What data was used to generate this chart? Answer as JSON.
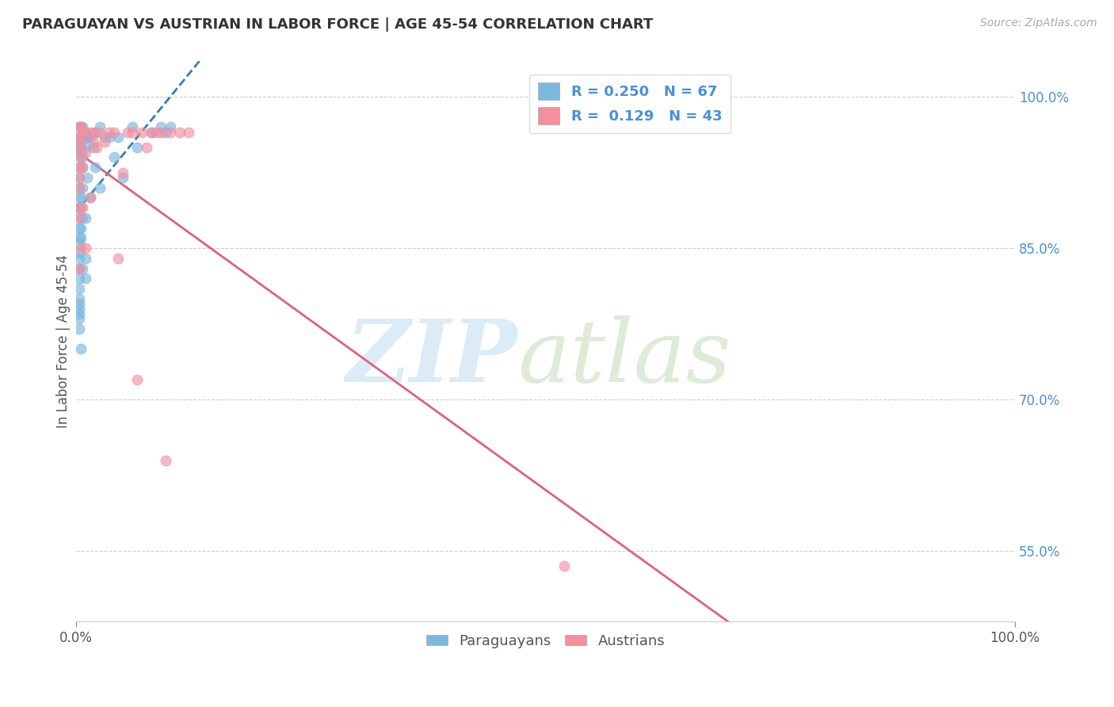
{
  "title": "PARAGUAYAN VS AUSTRIAN IN LABOR FORCE | AGE 45-54 CORRELATION CHART",
  "source_text": "Source: ZipAtlas.com",
  "ylabel": "In Labor Force | Age 45-54",
  "xlim": [
    0.0,
    1.0
  ],
  "ylim": [
    0.48,
    1.035
  ],
  "ytick_vals": [
    0.55,
    0.7,
    0.85,
    1.0
  ],
  "ytick_labels": [
    "55.0%",
    "70.0%",
    "85.0%",
    "100.0%"
  ],
  "xtick_labels": [
    "0.0%",
    "100.0%"
  ],
  "paraguayan_color": "#7ab8e0",
  "austrian_color": "#f48fa0",
  "trend_blue": "#3a7abd",
  "trend_pink": "#e06080",
  "background_color": "#ffffff",
  "paraguayan_x": [
    0.003,
    0.003,
    0.003,
    0.003,
    0.003,
    0.003,
    0.003,
    0.003,
    0.003,
    0.003,
    0.003,
    0.003,
    0.003,
    0.003,
    0.003,
    0.003,
    0.003,
    0.003,
    0.003,
    0.003,
    0.003,
    0.003,
    0.003,
    0.003,
    0.003,
    0.003,
    0.005,
    0.005,
    0.005,
    0.005,
    0.005,
    0.005,
    0.005,
    0.005,
    0.007,
    0.007,
    0.007,
    0.007,
    0.007,
    0.007,
    0.007,
    0.01,
    0.01,
    0.01,
    0.01,
    0.01,
    0.01,
    0.012,
    0.012,
    0.015,
    0.015,
    0.018,
    0.02,
    0.02,
    0.025,
    0.025,
    0.03,
    0.035,
    0.04,
    0.045,
    0.05,
    0.06,
    0.065,
    0.08,
    0.09,
    0.095,
    0.1
  ],
  "paraguayan_y": [
    0.97,
    0.96,
    0.955,
    0.95,
    0.945,
    0.94,
    0.93,
    0.92,
    0.91,
    0.9,
    0.89,
    0.88,
    0.87,
    0.86,
    0.855,
    0.845,
    0.84,
    0.83,
    0.82,
    0.81,
    0.8,
    0.795,
    0.79,
    0.785,
    0.78,
    0.77,
    0.97,
    0.96,
    0.95,
    0.9,
    0.89,
    0.87,
    0.86,
    0.75,
    0.97,
    0.96,
    0.94,
    0.93,
    0.91,
    0.88,
    0.83,
    0.965,
    0.96,
    0.95,
    0.88,
    0.84,
    0.82,
    0.96,
    0.92,
    0.96,
    0.9,
    0.95,
    0.965,
    0.93,
    0.97,
    0.91,
    0.96,
    0.96,
    0.94,
    0.96,
    0.92,
    0.97,
    0.95,
    0.965,
    0.97,
    0.965,
    0.97
  ],
  "austrian_x": [
    0.003,
    0.003,
    0.003,
    0.003,
    0.003,
    0.003,
    0.003,
    0.003,
    0.003,
    0.005,
    0.005,
    0.005,
    0.005,
    0.007,
    0.007,
    0.007,
    0.01,
    0.01,
    0.01,
    0.015,
    0.015,
    0.018,
    0.02,
    0.022,
    0.025,
    0.03,
    0.035,
    0.04,
    0.045,
    0.05,
    0.055,
    0.06,
    0.065,
    0.07,
    0.075,
    0.08,
    0.085,
    0.09,
    0.095,
    0.1,
    0.11,
    0.12,
    0.52
  ],
  "austrian_y": [
    0.97,
    0.96,
    0.95,
    0.93,
    0.92,
    0.91,
    0.89,
    0.88,
    0.83,
    0.97,
    0.955,
    0.94,
    0.85,
    0.965,
    0.93,
    0.89,
    0.965,
    0.945,
    0.85,
    0.965,
    0.9,
    0.955,
    0.965,
    0.95,
    0.965,
    0.955,
    0.965,
    0.965,
    0.84,
    0.925,
    0.965,
    0.965,
    0.72,
    0.965,
    0.95,
    0.965,
    0.965,
    0.965,
    0.64,
    0.965,
    0.965,
    0.965,
    0.535
  ]
}
